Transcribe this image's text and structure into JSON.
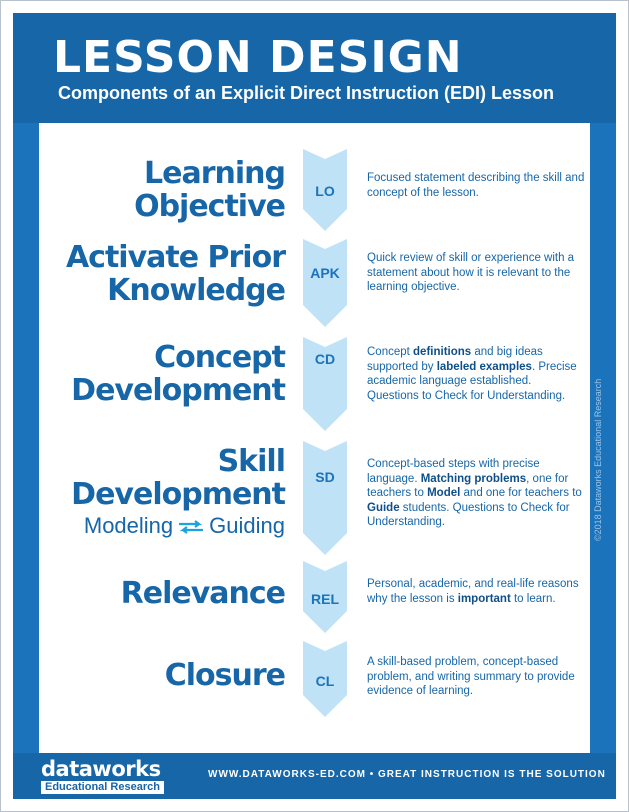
{
  "header": {
    "title": "LESSON DESIGN",
    "subtitle": "Components of an Explicit Direct Instruction (EDI) Lesson"
  },
  "sidebar": {
    "copyright": "©2018 Dataworks Educational Research"
  },
  "footer": {
    "logo_main": "dataworks",
    "logo_sub": "Educational Research",
    "tagline": "WWW.DATAWORKS-ED.COM  •  GREAT INSTRUCTION IS THE SOLUTION"
  },
  "components": [
    {
      "heading_lines": [
        "Learning",
        "Objective"
      ],
      "abbr": "LO",
      "desc": [
        {
          "t": "Focused statement describing the skill and concept of the lesson."
        }
      ]
    },
    {
      "heading_lines": [
        "Activate Prior",
        "Knowledge"
      ],
      "abbr": "APK",
      "desc": [
        {
          "t": "Quick review of skill or experience with a statement about how it is relevant to the learning objective."
        }
      ]
    },
    {
      "heading_lines": [
        "Concept",
        "Development"
      ],
      "abbr": "CD",
      "desc": [
        {
          "t": "Concept "
        },
        {
          "t": "definitions",
          "b": true
        },
        {
          "t": " and big ideas supported by "
        },
        {
          "t": "labeled examples",
          "b": true
        },
        {
          "t": ". Precise academic language established. Questions to Check for Understanding."
        }
      ]
    },
    {
      "heading_lines": [
        "Skill",
        "Development"
      ],
      "abbr": "SD",
      "modeling": "Modeling",
      "guiding": "Guiding",
      "swap_icon": "swap-arrows-icon",
      "desc": [
        {
          "t": "Concept-based steps with precise language. "
        },
        {
          "t": "Matching problems",
          "b": true
        },
        {
          "t": ", one for teachers to "
        },
        {
          "t": "Model",
          "b": true
        },
        {
          "t": " and one for teachers to "
        },
        {
          "t": "Guide",
          "b": true
        },
        {
          "t": " students. Questions to Check for Understanding."
        }
      ]
    },
    {
      "heading_lines": [
        "Relevance"
      ],
      "abbr": "REL",
      "desc": [
        {
          "t": "Personal, academic, and real-life reasons why the lesson is "
        },
        {
          "t": "important",
          "b": true
        },
        {
          "t": " to learn."
        }
      ]
    },
    {
      "heading_lines": [
        "Closure"
      ],
      "abbr": "CL",
      "desc": [
        {
          "t": "A skill-based problem, concept-based problem, and writing summary to provide evidence of learning."
        }
      ]
    }
  ],
  "colors": {
    "brand_blue": "#1766a8",
    "sidebar_blue": "#1a73bb",
    "arrow_fill": "#bfe2f7"
  }
}
